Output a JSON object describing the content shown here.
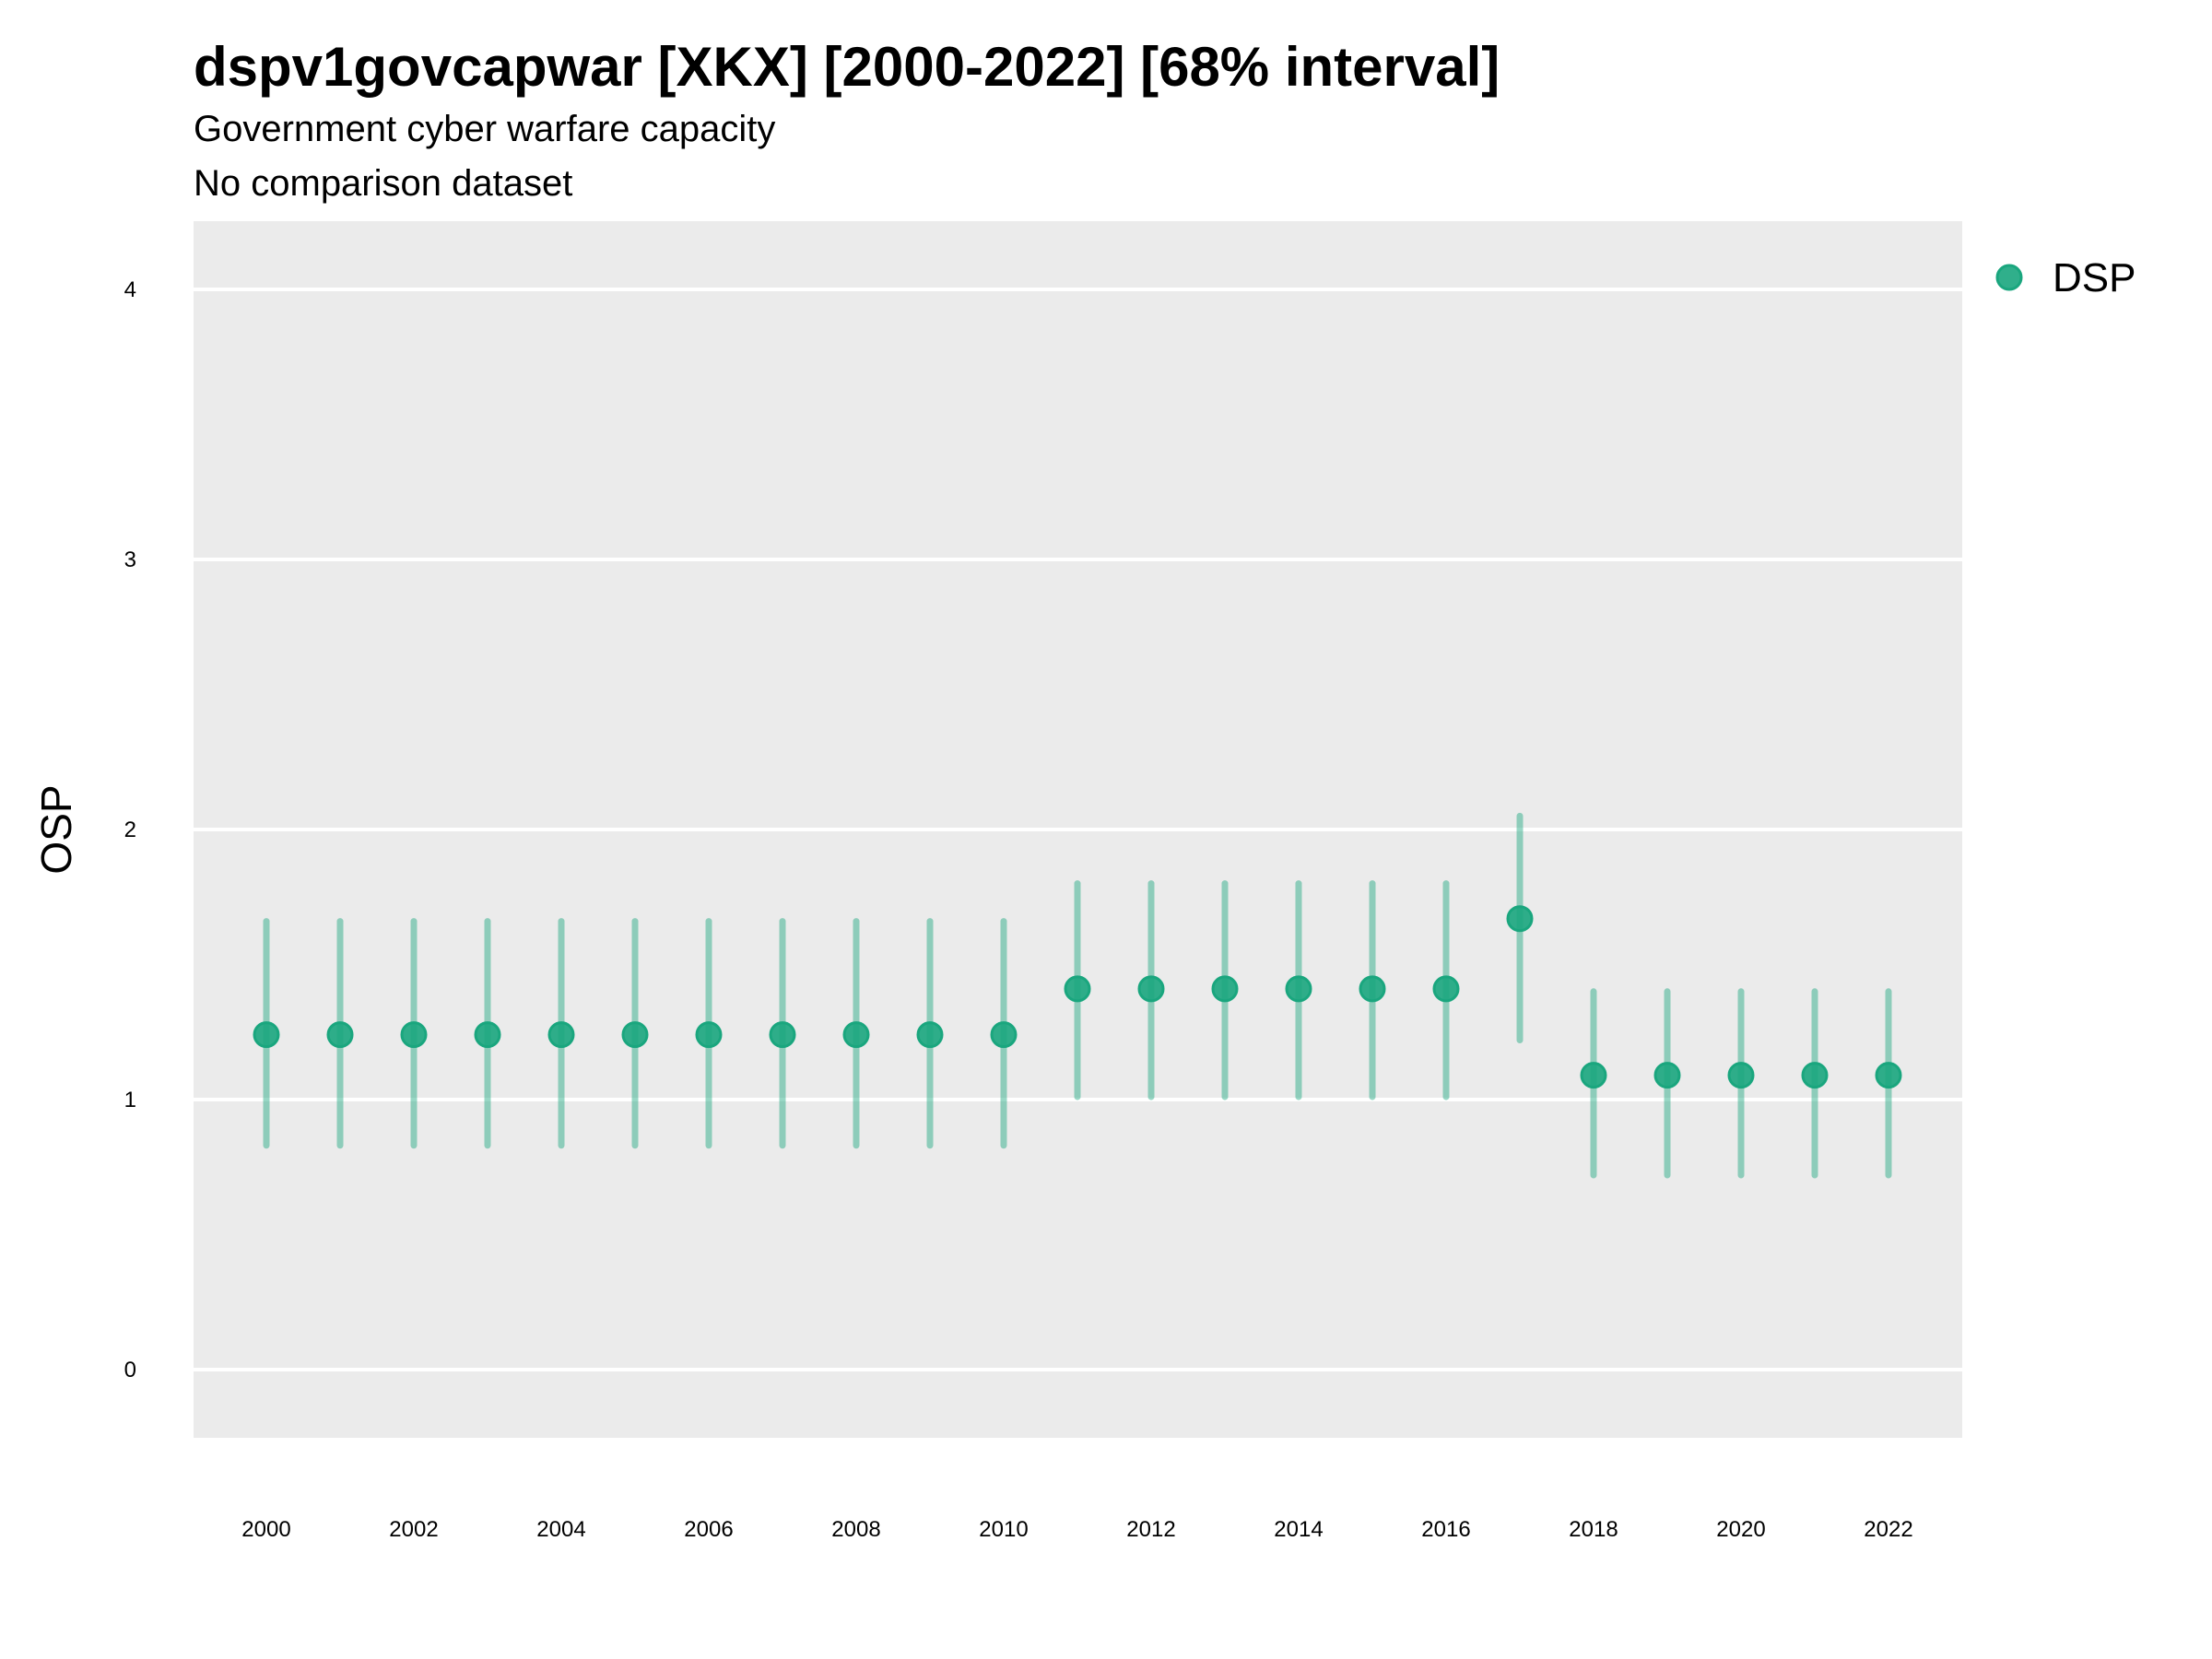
{
  "chart_data": {
    "type": "scatter",
    "title": "dspv1govcapwar [XKX] [2000-2022] [68% interval]",
    "subtitle": "Government cyber warfare capacity",
    "caption": "No comparison dataset",
    "xlabel": "",
    "ylabel": "OSP",
    "xlim": [
      1999,
      2023
    ],
    "ylim": [
      -0.25,
      4.25
    ],
    "x_ticks": [
      "2000",
      "2002",
      "2004",
      "2006",
      "2008",
      "2010",
      "2012",
      "2014",
      "2016",
      "2018",
      "2020",
      "2022"
    ],
    "y_ticks": [
      "0",
      "1",
      "2",
      "3",
      "4"
    ],
    "grid": true,
    "legend_position": "right",
    "series": [
      {
        "name": "DSP",
        "color": "#1aa67e",
        "x": [
          2000,
          2001,
          2002,
          2003,
          2004,
          2005,
          2006,
          2007,
          2008,
          2009,
          2010,
          2011,
          2012,
          2013,
          2014,
          2015,
          2016,
          2017,
          2018,
          2019,
          2020,
          2021,
          2022
        ],
        "y": [
          1.24,
          1.24,
          1.24,
          1.24,
          1.24,
          1.24,
          1.24,
          1.24,
          1.24,
          1.24,
          1.24,
          1.41,
          1.41,
          1.41,
          1.41,
          1.41,
          1.41,
          1.67,
          1.09,
          1.09,
          1.09,
          1.09,
          1.09
        ],
        "lower": [
          0.83,
          0.83,
          0.83,
          0.83,
          0.83,
          0.83,
          0.83,
          0.83,
          0.83,
          0.83,
          0.83,
          1.01,
          1.01,
          1.01,
          1.01,
          1.01,
          1.01,
          1.22,
          0.72,
          0.72,
          0.72,
          0.72,
          0.72
        ],
        "upper": [
          1.66,
          1.66,
          1.66,
          1.66,
          1.66,
          1.66,
          1.66,
          1.66,
          1.66,
          1.66,
          1.66,
          1.8,
          1.8,
          1.8,
          1.8,
          1.8,
          1.8,
          2.05,
          1.4,
          1.4,
          1.4,
          1.4,
          1.4
        ]
      }
    ]
  }
}
